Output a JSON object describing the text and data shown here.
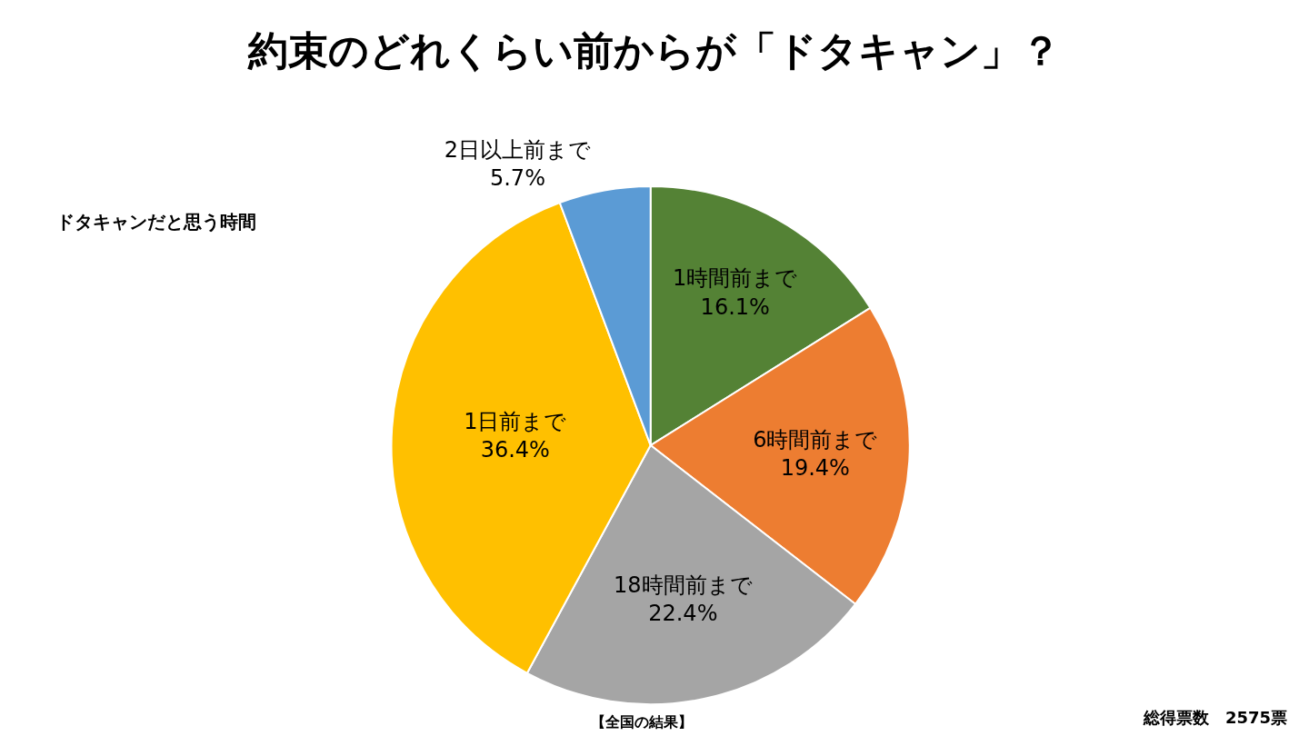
{
  "chart_data": {
    "type": "pie",
    "title": "約束のどれくらい前からが「ドタキャン」？",
    "subtitle": "ドタキャンだと思う時間",
    "categories": [
      "1時間前まで",
      "6時間前まで",
      "18時間前まで",
      "1日前まで",
      "2日以上前まで"
    ],
    "values": [
      16.1,
      19.4,
      22.4,
      36.4,
      5.7
    ],
    "value_labels": [
      "16.1%",
      "19.4%",
      "22.4%",
      "36.4%",
      "5.7%"
    ],
    "colors": [
      "#548235",
      "#ed7d31",
      "#a5a5a5",
      "#ffc000",
      "#5b9bd5"
    ],
    "annotations": [
      "【全国の結果】",
      "総得票数　2575票"
    ],
    "legend": false
  }
}
